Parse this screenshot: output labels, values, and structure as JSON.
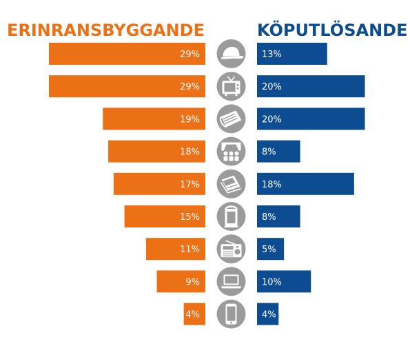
{
  "chart_data": {
    "type": "bar",
    "orientation": "horizontal-diverging",
    "left_series": {
      "name": "ERINRANSBYGGANDE",
      "color": "#ec7016",
      "values": [
        29,
        29,
        19,
        18,
        17,
        15,
        11,
        9,
        4
      ],
      "labels": [
        "29%",
        "29%",
        "19%",
        "18%",
        "17%",
        "15%",
        "11%",
        "9%",
        "4%"
      ]
    },
    "right_series": {
      "name": "KÖPUTLÖSANDE",
      "color": "#0e4c92",
      "values": [
        13,
        20,
        20,
        8,
        18,
        8,
        5,
        10,
        4
      ],
      "labels": [
        "13%",
        "20%",
        "20%",
        "8%",
        "18%",
        "8%",
        "5%",
        "10%",
        "4%"
      ]
    },
    "category_icons": [
      "cap-icon",
      "tv-icon",
      "newspaper-icon",
      "cinema-icon",
      "magazine-icon",
      "outdoor-poster-icon",
      "radio-icon",
      "laptop-icon",
      "smartphone-icon"
    ],
    "icon_color": "#9b9b9b",
    "xlim": [
      0,
      30
    ]
  }
}
